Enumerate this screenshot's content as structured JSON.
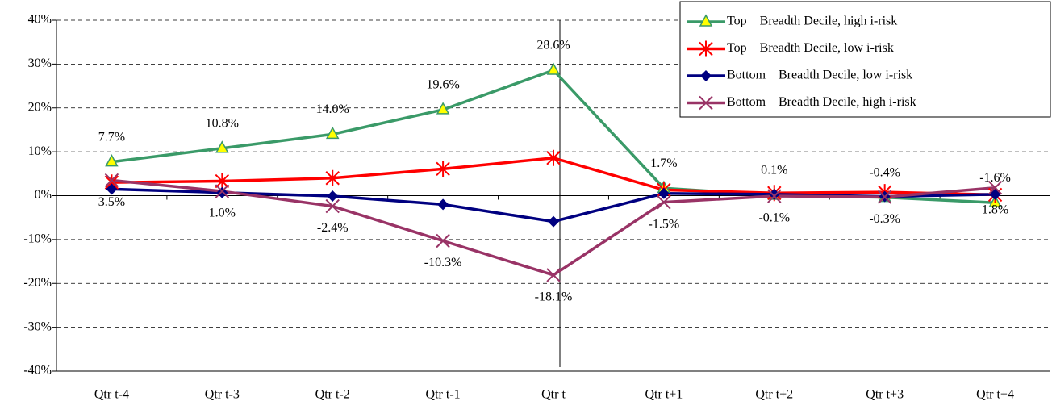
{
  "chart_data": {
    "type": "line",
    "categories": [
      "Qtr t-4",
      "Qtr t-3",
      "Qtr t-2",
      "Qtr t-1",
      "Qtr t",
      "Qtr t+1",
      "Qtr t+2",
      "Qtr t+3",
      "Qtr t+4"
    ],
    "series": [
      {
        "name": "Top    Breadth Decile, high i-risk",
        "color": "#3a9a68",
        "marker": "triangle",
        "values": [
          7.7,
          10.8,
          14.0,
          19.6,
          28.6,
          1.7,
          0.1,
          -0.4,
          -1.6
        ],
        "value_labels": [
          "7.7%",
          "10.8%",
          "14.0%",
          "19.6%",
          "28.6%",
          "1.7%",
          "0.1%",
          "-0.4%",
          "-1.6%"
        ],
        "label_position": "above"
      },
      {
        "name": "Top    Breadth Decile, low i-risk",
        "color": "#ff0000",
        "marker": "asterisk",
        "values": [
          3.0,
          3.3,
          4.0,
          6.1,
          8.6,
          1.3,
          0.6,
          0.8,
          0.2
        ]
      },
      {
        "name": "Bottom    Breadth Decile, low i-risk",
        "color": "#000080",
        "marker": "diamond",
        "values": [
          1.5,
          0.7,
          -0.1,
          -2.0,
          -5.9,
          0.5,
          0.3,
          -0.2,
          0.3
        ]
      },
      {
        "name": "Bottom    Breadth Decile, high i-risk",
        "color": "#993366",
        "marker": "cross",
        "values": [
          3.5,
          1.0,
          -2.4,
          -10.3,
          -18.1,
          -1.5,
          -0.1,
          -0.3,
          1.8
        ],
        "value_labels": [
          "3.5%",
          "1.0%",
          "-2.4%",
          "-10.3%",
          "-18.1%",
          "-1.5%",
          "-0.1%",
          "-0.3%",
          "1.8%"
        ],
        "label_position": "below"
      }
    ],
    "ylim": [
      -40,
      40
    ],
    "yticks": [
      {
        "value": -40,
        "label": "-40%"
      },
      {
        "value": -30,
        "label": "-30%"
      },
      {
        "value": -20,
        "label": "-20%"
      },
      {
        "value": -10,
        "label": "-10%"
      },
      {
        "value": 0,
        "label": "0%"
      },
      {
        "value": 10,
        "label": "10%"
      },
      {
        "value": 20,
        "label": "20%"
      },
      {
        "value": 30,
        "label": "30%"
      },
      {
        "value": 40,
        "label": "40%"
      }
    ],
    "grid": true,
    "legend": "top-right"
  }
}
